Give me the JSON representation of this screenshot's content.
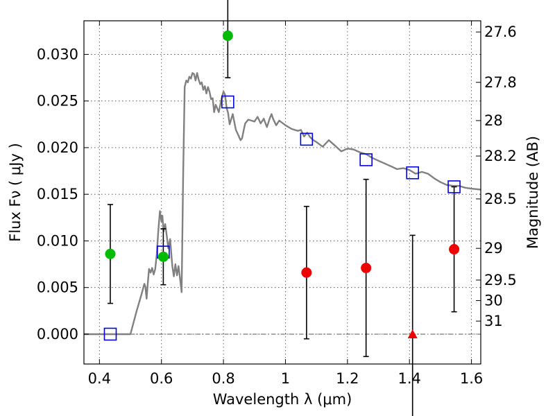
{
  "chart_data": {
    "type": "scatter",
    "xlabel": "Wavelength  λ (μm)",
    "ylabel": "Flux  Fν  ( μJy )",
    "ylabel_right": "Magnitude (AB)",
    "xlim": [
      0.35,
      1.63
    ],
    "ylim": [
      -0.0032,
      0.0336
    ],
    "x_ticks": [
      {
        "v": 0.4,
        "label": "0.4"
      },
      {
        "v": 0.6,
        "label": "0.6"
      },
      {
        "v": 0.8,
        "label": "0.8"
      },
      {
        "v": 1.0,
        "label": "1"
      },
      {
        "v": 1.2,
        "label": "1.2"
      },
      {
        "v": 1.4,
        "label": "1.4"
      },
      {
        "v": 1.6,
        "label": "1.6"
      }
    ],
    "y_ticks": [
      {
        "v": 0.0,
        "label": "0.000"
      },
      {
        "v": 0.005,
        "label": "0.005"
      },
      {
        "v": 0.01,
        "label": "0.010"
      },
      {
        "v": 0.015,
        "label": "0.015"
      },
      {
        "v": 0.02,
        "label": "0.020"
      },
      {
        "v": 0.025,
        "label": "0.025"
      },
      {
        "v": 0.03,
        "label": "0.030"
      }
    ],
    "right_ticks": [
      {
        "flux": 0.0324,
        "label": "27.6"
      },
      {
        "flux": 0.027,
        "label": "27.8"
      },
      {
        "flux": 0.0229,
        "label": "28"
      },
      {
        "flux": 0.0191,
        "label": "28.2"
      },
      {
        "flux": 0.0145,
        "label": "28.5"
      },
      {
        "flux": 0.0092,
        "label": "29"
      },
      {
        "flux": 0.0058,
        "label": "29.5"
      },
      {
        "flux": 0.0036,
        "label": "30"
      },
      {
        "flux": 0.0014,
        "label": "31"
      }
    ],
    "grid": true,
    "model_sed": {
      "color": "#808080",
      "x": [
        0.35,
        0.5,
        0.52,
        0.535,
        0.545,
        0.548,
        0.552,
        0.556,
        0.56,
        0.565,
        0.57,
        0.575,
        0.58,
        0.585,
        0.59,
        0.595,
        0.6,
        0.603,
        0.607,
        0.612,
        0.617,
        0.622,
        0.628,
        0.635,
        0.64,
        0.645,
        0.65,
        0.655,
        0.66,
        0.665,
        0.67,
        0.675,
        0.68,
        0.685,
        0.69,
        0.695,
        0.7,
        0.705,
        0.71,
        0.715,
        0.72,
        0.725,
        0.73,
        0.735,
        0.74,
        0.745,
        0.75,
        0.755,
        0.76,
        0.765,
        0.77,
        0.775,
        0.78,
        0.785,
        0.79,
        0.795,
        0.8,
        0.805,
        0.81,
        0.815,
        0.82,
        0.83,
        0.84,
        0.85,
        0.855,
        0.86,
        0.865,
        0.87,
        0.88,
        0.89,
        0.9,
        0.91,
        0.92,
        0.93,
        0.94,
        0.95,
        0.955,
        0.96,
        0.97,
        0.98,
        1.0,
        1.02,
        1.04,
        1.05,
        1.06,
        1.07,
        1.08,
        1.09,
        1.1,
        1.12,
        1.14,
        1.16,
        1.18,
        1.2,
        1.22,
        1.24,
        1.26,
        1.28,
        1.3,
        1.32,
        1.34,
        1.36,
        1.38,
        1.4,
        1.42,
        1.44,
        1.46,
        1.48,
        1.5,
        1.52,
        1.54,
        1.56,
        1.58,
        1.6,
        1.63
      ],
      "y": [
        0.0,
        0.0,
        0.0025,
        0.0042,
        0.0054,
        0.0051,
        0.0038,
        0.0055,
        0.007,
        0.0066,
        0.0071,
        0.0064,
        0.007,
        0.0086,
        0.0112,
        0.0132,
        0.0121,
        0.0127,
        0.011,
        0.0118,
        0.0106,
        0.0092,
        0.0102,
        0.0073,
        0.0062,
        0.0075,
        0.0063,
        0.0073,
        0.006,
        0.0045,
        0.017,
        0.0265,
        0.0272,
        0.027,
        0.0276,
        0.0274,
        0.028,
        0.0279,
        0.0272,
        0.028,
        0.0273,
        0.0268,
        0.027,
        0.0262,
        0.0266,
        0.0258,
        0.0265,
        0.026,
        0.0252,
        0.0253,
        0.0238,
        0.0246,
        0.0242,
        0.0238,
        0.0246,
        0.0254,
        0.026,
        0.0257,
        0.0243,
        0.0237,
        0.0225,
        0.0236,
        0.0219,
        0.0212,
        0.0208,
        0.021,
        0.0218,
        0.0226,
        0.023,
        0.0229,
        0.0228,
        0.0233,
        0.0226,
        0.0231,
        0.0222,
        0.0232,
        0.0236,
        0.0231,
        0.0224,
        0.0229,
        0.0224,
        0.022,
        0.0218,
        0.0219,
        0.0212,
        0.0216,
        0.0211,
        0.0208,
        0.0206,
        0.0201,
        0.0208,
        0.0202,
        0.0196,
        0.0199,
        0.0198,
        0.0195,
        0.0193,
        0.0189,
        0.0186,
        0.0183,
        0.018,
        0.0177,
        0.0178,
        0.0176,
        0.0172,
        0.0174,
        0.0172,
        0.0167,
        0.0163,
        0.016,
        0.0159,
        0.0159,
        0.0157,
        0.0156,
        0.0155
      ]
    },
    "model_bandpass": {
      "marker": "square-open",
      "color": "#0000dd",
      "x": [
        0.435,
        0.606,
        0.814,
        1.068,
        1.26,
        1.41,
        1.544
      ],
      "y": [
        0.0,
        0.0088,
        0.0249,
        0.0209,
        0.0187,
        0.0173,
        0.0158
      ]
    },
    "detections": {
      "marker": "circle",
      "color": "#00bb00",
      "x": [
        0.435,
        0.606,
        0.814
      ],
      "y": [
        0.0086,
        0.0083,
        0.032
      ],
      "err": [
        0.0053,
        0.003,
        0.0045
      ]
    },
    "nondetections": {
      "marker": "circle",
      "color": "#ee0000",
      "x": [
        1.068,
        1.26,
        1.544
      ],
      "y": [
        0.0066,
        0.0071,
        0.0091
      ],
      "err": [
        0.0071,
        0.0095,
        0.0067
      ]
    },
    "upper_limit": {
      "marker": "triangle",
      "color": "#ee0000",
      "x": [
        1.41
      ],
      "y": [
        0.0
      ],
      "err": [
        0.0106
      ]
    }
  }
}
